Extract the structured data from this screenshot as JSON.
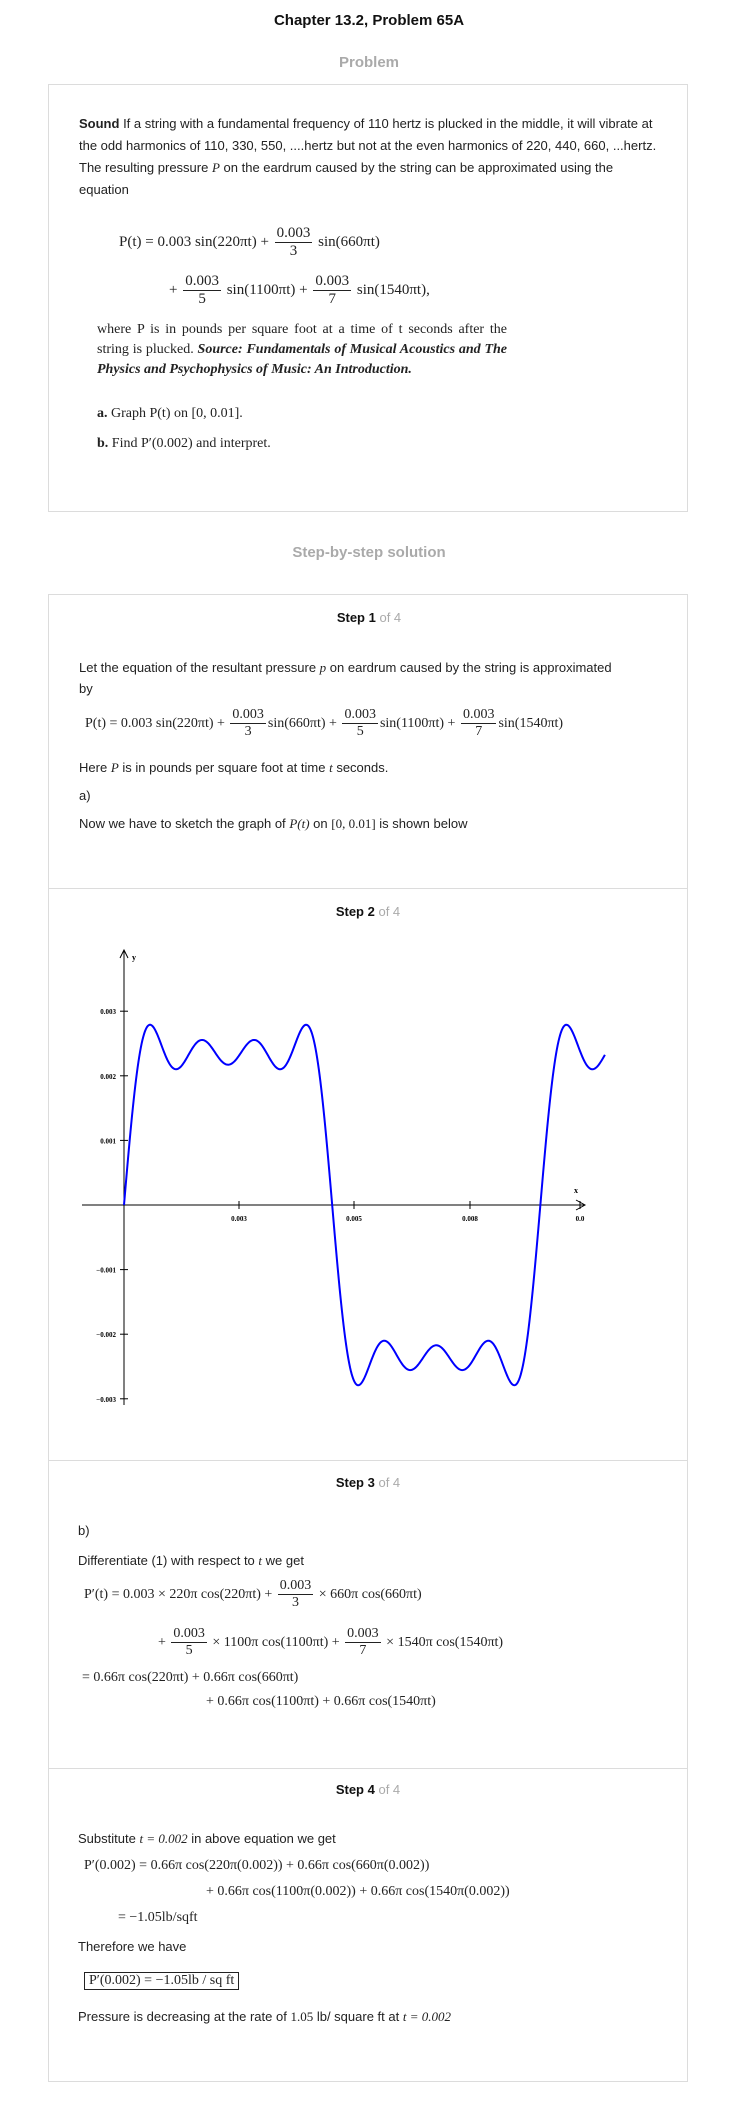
{
  "header": {
    "title": "Chapter 13.2, Problem 65A"
  },
  "problem": {
    "heading": "Problem",
    "bold_lead": "Sound",
    "intro": "If a string with a fundamental frequency of 110 hertz is plucked in the middle, it will vibrate at the odd harmonics of 110, 330, 550, ....hertz but not at the even harmonics of 220, 440, 660, ...hertz. The resulting pressure",
    "intro_var": "P",
    "intro_end": "on the eardrum caused by the string can be approximated using the equation",
    "eq": {
      "lhs": "P(t) = 0.003 sin(220πt) +",
      "f1n": "0.003",
      "f1d": "3",
      "t1": "sin(660πt)",
      "plus2": "+",
      "f2n": "0.003",
      "f2d": "5",
      "t2": "sin(1100πt) +",
      "f3n": "0.003",
      "f3d": "7",
      "t3": "sin(1540πt),"
    },
    "where_text": "where P is in pounds per square foot at a time of t seconds after the string is plucked.",
    "source_label": "Source: Fundamentals of Musical Acoustics and The Physics and Psychophysics of Music: An Introduction.",
    "part_a_label": "a.",
    "part_a_text": "Graph P(t) on [0, 0.01].",
    "part_b_label": "b.",
    "part_b_text": "Find P′(0.002) and interpret."
  },
  "solution": {
    "heading": "Step-by-step solution",
    "of_total": "of 4",
    "step1": {
      "label": "Step 1",
      "text1": "Let the equation of the resultant pressure",
      "text1_var": "p",
      "text1_end": "on eardrum caused by the string is approximated by",
      "eq_lhs": "P(t) = 0.003 sin(220πt) +",
      "fn": "0.003",
      "f1d": "3",
      "f2d": "5",
      "f3d": "7",
      "s1": "sin(660πt) +",
      "s2": "sin(1100πt) +",
      "s3": "sin(1540πt)",
      "here_a": "Here",
      "here_var": "P",
      "here_b": "is in pounds per square foot at time",
      "here_t": "t",
      "here_c": "seconds.",
      "part": "a)",
      "sketch_a": "Now we have to sketch the graph of",
      "sketch_f": "P(t)",
      "sketch_on": "on",
      "sketch_int": "[0, 0.01]",
      "sketch_b": "is shown below"
    },
    "step2": {
      "label": "Step 2"
    },
    "step3": {
      "label": "Step 3",
      "part": "b)",
      "diff_a": "Differentiate (1) with respect to",
      "diff_var": "t",
      "diff_b": "we get",
      "l1a": "P′(t) = 0.003 × 220π cos(220πt) +",
      "l1f_n": "0.003",
      "l1f_d": "3",
      "l1b": "× 660π cos(660πt)",
      "l2a": "+",
      "l2f1_n": "0.003",
      "l2f1_d": "5",
      "l2b": "× 1100π cos(1100πt) +",
      "l2f2_n": "0.003",
      "l2f2_d": "7",
      "l2c": "× 1540π cos(1540πt)",
      "l3": "= 0.66π cos(220πt) + 0.66π cos(660πt)",
      "l4": "+ 0.66π cos(1100πt) + 0.66π cos(1540πt)"
    },
    "step4": {
      "label": "Step 4",
      "sub_a": "Substitute",
      "sub_eq": "t = 0.002",
      "sub_b": "in above equation we get",
      "l1": "P′(0.002) = 0.66π cos(220π(0.002)) + 0.66π cos(660π(0.002))",
      "l2": "+ 0.66π cos(1100π(0.002)) + 0.66π cos(1540π(0.002))",
      "l3": "= −1.05lb/sqft",
      "therefore": "Therefore we have",
      "boxed": "P′(0.002) = −1.05lb / sq ft",
      "concl_a": "Pressure is decreasing at the rate of",
      "concl_val": "1.05",
      "concl_b": "lb/ square ft at",
      "concl_t": "t = 0.002"
    }
  },
  "chart_data": {
    "type": "line",
    "xlabel": "x",
    "ylabel": "y",
    "x_ticks": [
      "0.003",
      "0.005",
      "0.008",
      "0.0"
    ],
    "y_ticks": [
      "0.003",
      "0.002",
      "0.001",
      "−0.001",
      "−0.002",
      "−0.003"
    ],
    "xlim": [
      0,
      0.01
    ],
    "ylim": [
      -0.003,
      0.003
    ],
    "series": [
      {
        "function": "0.003 sin(220πt) + 0.001 sin(660πt) + 0.0006 sin(1100πt) + (0.003/7) sin(1540πt)",
        "x_range": [
          0,
          0.0105
        ],
        "color": "#0000ff"
      }
    ],
    "grid": false
  }
}
